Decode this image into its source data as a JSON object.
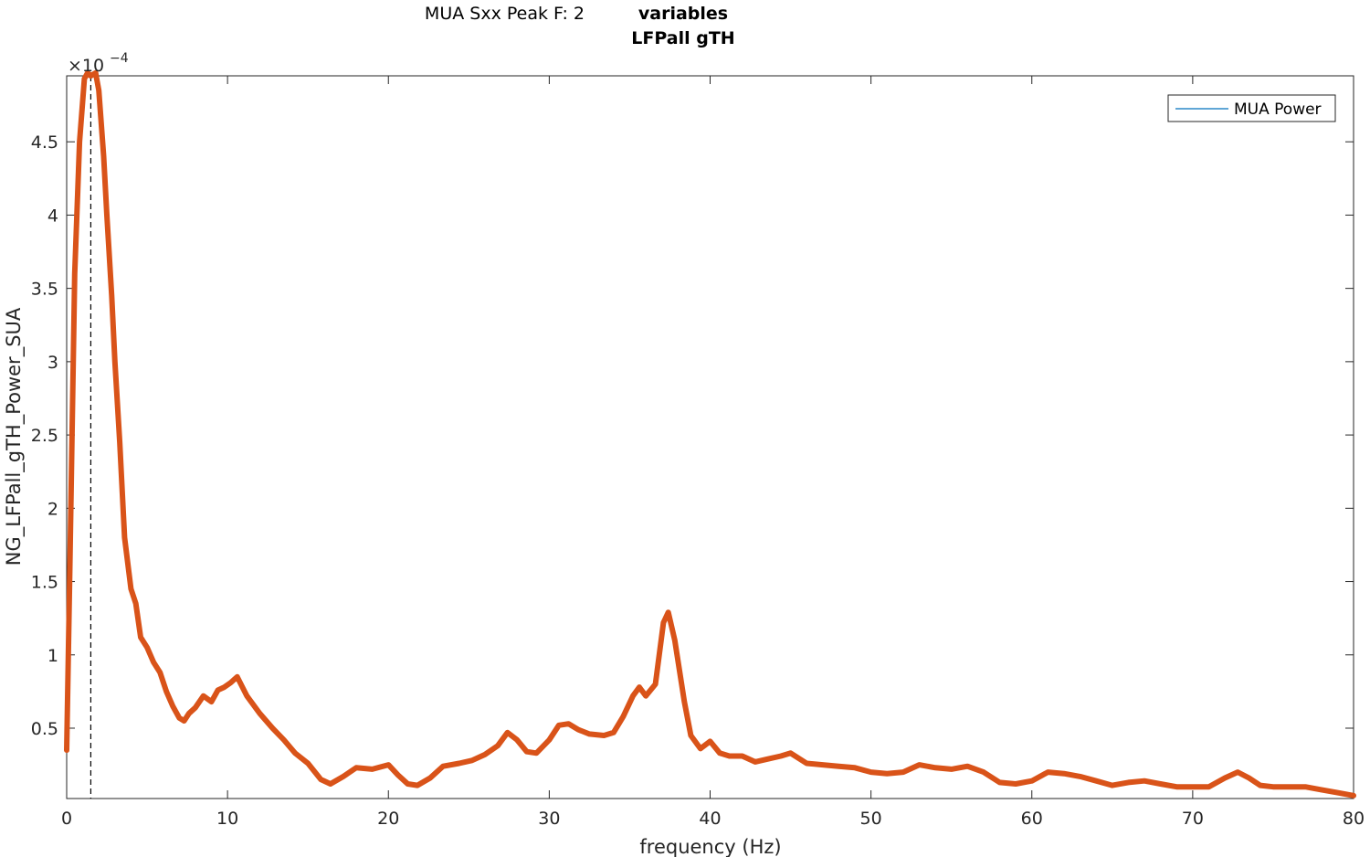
{
  "title": {
    "left": "MUA Sxx Peak F: 2",
    "right_line1": "variables",
    "right_line2": "LFPall gTH"
  },
  "axis_exponent": {
    "base": "×10",
    "power": "−4"
  },
  "legend": {
    "label": "MUA Power",
    "position": "top-right"
  },
  "colors": {
    "series": "#d95319",
    "legend_line": "#0072bd",
    "axes": "#262626",
    "peak_marker": "#000000"
  },
  "chart_data": {
    "type": "line",
    "title": "MUA Sxx Peak F: 2",
    "xlabel": "frequency (Hz)",
    "ylabel": "NG_LFPall_gTH_Power_SUA",
    "xlim": [
      0,
      80
    ],
    "ylim": [
      0.02,
      4.95
    ],
    "y_scale": "x1e-4",
    "grid": false,
    "xticks": [
      0,
      10,
      20,
      30,
      40,
      50,
      60,
      70,
      80
    ],
    "xtick_labels": [
      "0",
      "10",
      "20",
      "30",
      "40",
      "50",
      "60",
      "70",
      "80"
    ],
    "yticks": [
      0.5,
      1,
      1.5,
      2,
      2.5,
      3,
      3.5,
      4,
      4.5
    ],
    "ytick_labels": [
      "0.5",
      "1",
      "1.5",
      "2",
      "2.5",
      "3",
      "3.5",
      "4",
      "4.5"
    ],
    "peak_frequency": 1.5,
    "series": [
      {
        "name": "MUA Power",
        "x": [
          0,
          0.2,
          0.5,
          0.8,
          1.1,
          1.3,
          1.5,
          1.8,
          2.0,
          2.3,
          2.5,
          2.8,
          3.0,
          3.3,
          3.6,
          4.0,
          4.3,
          4.6,
          5.0,
          5.4,
          5.8,
          6.2,
          6.6,
          7.0,
          7.3,
          7.6,
          8.0,
          8.5,
          9.0,
          9.4,
          9.8,
          10.2,
          10.6,
          11.2,
          12.0,
          12.8,
          13.5,
          14.2,
          15.0,
          15.8,
          16.4,
          17.2,
          18.0,
          19.0,
          20.0,
          20.6,
          21.2,
          21.8,
          22.6,
          23.4,
          24.4,
          25.2,
          26.0,
          26.8,
          27.4,
          28.0,
          28.6,
          29.2,
          30.0,
          30.6,
          31.2,
          31.8,
          32.5,
          33.4,
          34.0,
          34.6,
          35.2,
          35.6,
          36.0,
          36.6,
          37.1,
          37.4,
          37.8,
          38.4,
          38.8,
          39.4,
          40.0,
          40.6,
          41.2,
          42.0,
          42.8,
          43.6,
          44.4,
          45.0,
          46.0,
          47.0,
          48.0,
          49.0,
          50.0,
          51.0,
          52.0,
          53.0,
          54.0,
          55.0,
          56.0,
          57.0,
          58.0,
          59.0,
          60.0,
          61.0,
          62.0,
          63.0,
          64.0,
          65.0,
          66.0,
          67.0,
          68.0,
          69.0,
          70.0,
          71.0,
          72.0,
          72.8,
          73.5,
          74.2,
          75.0,
          76.0,
          77.0,
          78.0,
          79.0,
          80.0
        ],
        "values": [
          0.35,
          1.6,
          3.6,
          4.5,
          4.93,
          4.97,
          4.95,
          4.97,
          4.85,
          4.4,
          4.0,
          3.45,
          3.0,
          2.45,
          1.8,
          1.45,
          1.35,
          1.12,
          1.05,
          0.95,
          0.88,
          0.75,
          0.65,
          0.57,
          0.55,
          0.6,
          0.64,
          0.72,
          0.68,
          0.76,
          0.78,
          0.81,
          0.85,
          0.72,
          0.6,
          0.5,
          0.42,
          0.33,
          0.26,
          0.15,
          0.12,
          0.17,
          0.23,
          0.22,
          0.25,
          0.18,
          0.12,
          0.11,
          0.16,
          0.24,
          0.26,
          0.28,
          0.32,
          0.38,
          0.47,
          0.42,
          0.34,
          0.33,
          0.42,
          0.52,
          0.53,
          0.49,
          0.46,
          0.45,
          0.47,
          0.58,
          0.72,
          0.78,
          0.72,
          0.8,
          1.22,
          1.29,
          1.1,
          0.68,
          0.45,
          0.36,
          0.41,
          0.33,
          0.31,
          0.31,
          0.27,
          0.29,
          0.31,
          0.33,
          0.26,
          0.25,
          0.24,
          0.23,
          0.2,
          0.19,
          0.2,
          0.25,
          0.23,
          0.22,
          0.24,
          0.2,
          0.13,
          0.12,
          0.14,
          0.2,
          0.19,
          0.17,
          0.14,
          0.11,
          0.13,
          0.14,
          0.12,
          0.1,
          0.1,
          0.1,
          0.16,
          0.2,
          0.16,
          0.11,
          0.1,
          0.1,
          0.1,
          0.08,
          0.06,
          0.04
        ]
      }
    ]
  }
}
